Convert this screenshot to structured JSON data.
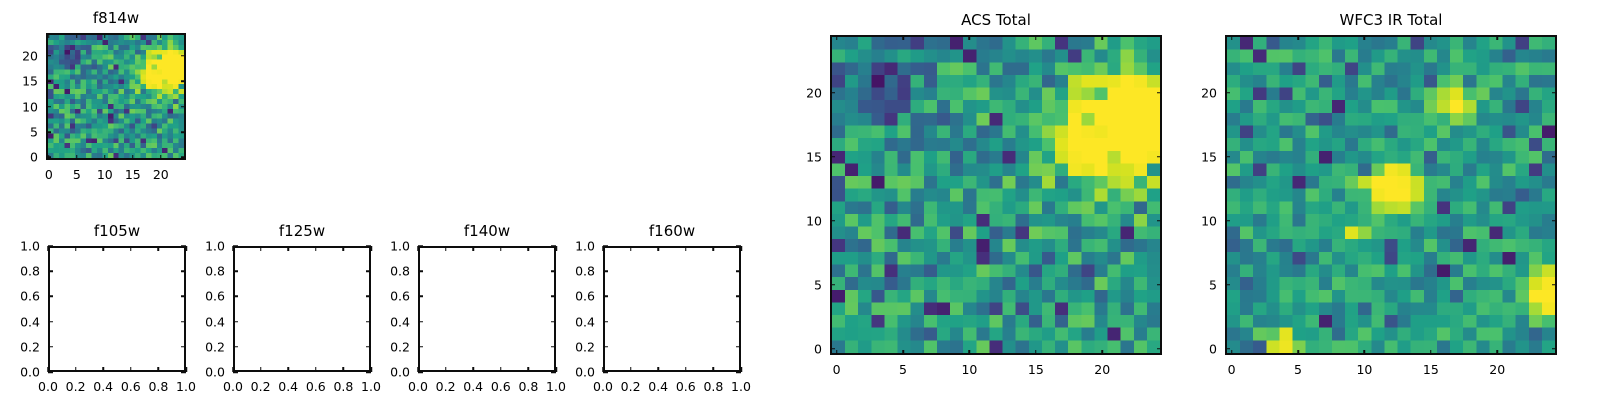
{
  "figure": {
    "background": "#ffffff",
    "spine_color": "#0d0d0d",
    "colormap_accent_low": "#440154",
    "colormap_accent_mid": "#21918c",
    "colormap_accent_high": "#fde725"
  },
  "chart_data": [
    {
      "type": "heatmap",
      "title": "f814w",
      "colormap": "viridis",
      "grid_size": 25,
      "xlim": [
        -0.5,
        24.5
      ],
      "ylim": [
        -0.5,
        24.5
      ],
      "value_range": [
        0,
        1
      ],
      "x_ticks": [
        0,
        5,
        10,
        15,
        20
      ],
      "x_tick_labels": [
        "0",
        "5",
        "10",
        "15",
        "20"
      ],
      "y_ticks": [
        0,
        5,
        10,
        15,
        20
      ],
      "y_tick_labels": [
        "0",
        "5",
        "10",
        "15",
        "20"
      ],
      "noise": {
        "seed": 7,
        "base": 0.3,
        "spread": 0.38,
        "dark_fraction": 0.12
      },
      "hotspots": [
        {
          "x": 21,
          "y": 17,
          "sigma": 3.0,
          "amp": 0.8
        },
        {
          "x": 24,
          "y": 19,
          "sigma": 2.0,
          "amp": 0.45
        },
        {
          "x": 3,
          "y": 21,
          "sigma": 2.5,
          "amp": -0.22
        }
      ]
    },
    {
      "type": "empty",
      "title": "f105w",
      "xlim": [
        0,
        1
      ],
      "ylim": [
        0,
        1
      ],
      "x_ticks": [
        0,
        0.2,
        0.4,
        0.6,
        0.8,
        1.0
      ],
      "x_tick_labels": [
        "0.0",
        "0.2",
        "0.4",
        "0.6",
        "0.8",
        "1.0"
      ],
      "y_ticks": [
        0,
        0.2,
        0.4,
        0.6,
        0.8,
        1.0
      ],
      "y_tick_labels": [
        "0.0",
        "0.2",
        "0.4",
        "0.6",
        "0.8",
        "1.0"
      ]
    },
    {
      "type": "empty",
      "title": "f125w",
      "xlim": [
        0,
        1
      ],
      "ylim": [
        0,
        1
      ],
      "x_ticks": [
        0,
        0.2,
        0.4,
        0.6,
        0.8,
        1.0
      ],
      "x_tick_labels": [
        "0.0",
        "0.2",
        "0.4",
        "0.6",
        "0.8",
        "1.0"
      ],
      "y_ticks": [
        0,
        0.2,
        0.4,
        0.6,
        0.8,
        1.0
      ],
      "y_tick_labels": [
        "0.0",
        "0.2",
        "0.4",
        "0.6",
        "0.8",
        "1.0"
      ]
    },
    {
      "type": "empty",
      "title": "f140w",
      "xlim": [
        0,
        1
      ],
      "ylim": [
        0,
        1
      ],
      "x_ticks": [
        0,
        0.2,
        0.4,
        0.6,
        0.8,
        1.0
      ],
      "x_tick_labels": [
        "0.0",
        "0.2",
        "0.4",
        "0.6",
        "0.8",
        "1.0"
      ],
      "y_ticks": [
        0,
        0.2,
        0.4,
        0.6,
        0.8,
        1.0
      ],
      "y_tick_labels": [
        "0.0",
        "0.2",
        "0.4",
        "0.6",
        "0.8",
        "1.0"
      ]
    },
    {
      "type": "empty",
      "title": "f160w",
      "xlim": [
        0,
        1
      ],
      "ylim": [
        0,
        1
      ],
      "x_ticks": [
        0,
        0.2,
        0.4,
        0.6,
        0.8,
        1.0
      ],
      "x_tick_labels": [
        "0.0",
        "0.2",
        "0.4",
        "0.6",
        "0.8",
        "1.0"
      ],
      "y_ticks": [
        0,
        0.2,
        0.4,
        0.6,
        0.8,
        1.0
      ],
      "y_tick_labels": [
        "0.0",
        "0.2",
        "0.4",
        "0.6",
        "0.8",
        "1.0"
      ]
    },
    {
      "type": "heatmap",
      "title": "ACS Total",
      "colormap": "viridis",
      "grid_size": 25,
      "xlim": [
        -0.5,
        24.5
      ],
      "ylim": [
        -0.5,
        24.5
      ],
      "value_range": [
        0,
        1
      ],
      "x_ticks": [
        0,
        5,
        10,
        15,
        20
      ],
      "x_tick_labels": [
        "0",
        "5",
        "10",
        "15",
        "20"
      ],
      "y_ticks": [
        0,
        5,
        10,
        15,
        20
      ],
      "y_tick_labels": [
        "0",
        "5",
        "10",
        "15",
        "20"
      ],
      "noise": {
        "seed": 7,
        "base": 0.3,
        "spread": 0.38,
        "dark_fraction": 0.12
      },
      "hotspots": [
        {
          "x": 21,
          "y": 17,
          "sigma": 3.0,
          "amp": 0.8
        },
        {
          "x": 24,
          "y": 19,
          "sigma": 2.0,
          "amp": 0.45
        },
        {
          "x": 3,
          "y": 21,
          "sigma": 2.5,
          "amp": -0.22
        }
      ]
    },
    {
      "type": "heatmap",
      "title": "WFC3 IR Total",
      "colormap": "viridis",
      "grid_size": 25,
      "xlim": [
        -0.5,
        24.5
      ],
      "ylim": [
        -0.5,
        24.5
      ],
      "value_range": [
        0,
        1
      ],
      "x_ticks": [
        0,
        5,
        10,
        15,
        20
      ],
      "x_tick_labels": [
        "0",
        "5",
        "10",
        "15",
        "20"
      ],
      "y_ticks": [
        0,
        5,
        10,
        15,
        20
      ],
      "y_tick_labels": [
        "0",
        "5",
        "10",
        "15",
        "20"
      ],
      "noise": {
        "seed": 99,
        "base": 0.34,
        "spread": 0.3,
        "dark_fraction": 0.12
      },
      "hotspots": [
        {
          "x": 12,
          "y": 12.5,
          "sigma": 1.2,
          "amp": 0.9
        },
        {
          "x": 17,
          "y": 19,
          "sigma": 1.0,
          "amp": 0.55
        },
        {
          "x": 24,
          "y": 4.5,
          "sigma": 1.3,
          "amp": 0.75
        },
        {
          "x": 4,
          "y": 0,
          "sigma": 1.0,
          "amp": 0.5
        },
        {
          "x": 9,
          "y": 9,
          "sigma": 0.8,
          "amp": 0.35
        }
      ]
    }
  ]
}
